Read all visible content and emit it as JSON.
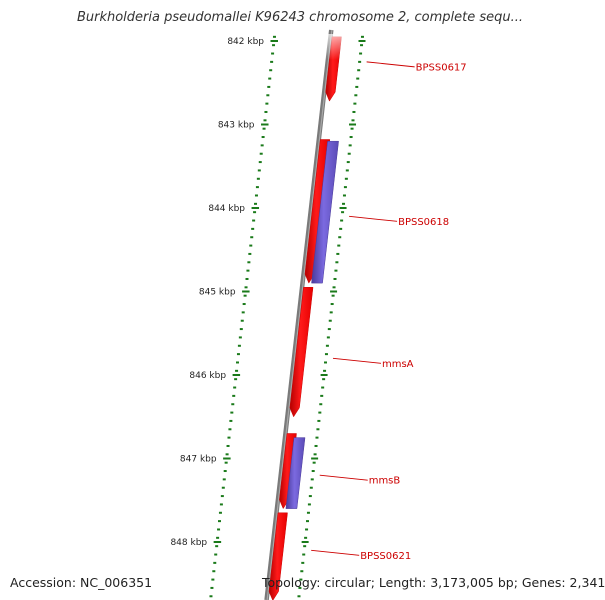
{
  "title": "Burkholderia pseudomallei K96243 chromosome 2, complete sequ...",
  "accession_text": "Accession: NC_006351",
  "summary_text": "Topology: circular; Length: 3,173,005 bp; Genes: 2,341",
  "colors": {
    "forward_gene": "#ff1a1a",
    "reverse_gene": "#6a5acd",
    "ticks": "#1a7a1a",
    "backbone": "#7a7a7a",
    "labels": "#cc0000"
  },
  "chart_data": {
    "type": "genome-map",
    "position_unit": "kbp",
    "ticks": [
      {
        "pos": 842,
        "label": "842 kbp"
      },
      {
        "pos": 843,
        "label": "843 kbp"
      },
      {
        "pos": 844,
        "label": "844 kbp"
      },
      {
        "pos": 845,
        "label": "845 kbp"
      },
      {
        "pos": 846,
        "label": "846 kbp"
      },
      {
        "pos": 847,
        "label": "847 kbp"
      },
      {
        "pos": 848,
        "label": "848 kbp"
      }
    ],
    "genes": [
      {
        "name": "BPSS0617",
        "strand": "+",
        "start": 841.95,
        "end": 842.72,
        "label_pos": 842.25
      },
      {
        "name": "BPSS0618",
        "strand": "+",
        "start": 843.18,
        "end": 844.9,
        "label_pos": 844.1
      },
      {
        "name": "",
        "strand": "-",
        "start": 843.2,
        "end": 844.9
      },
      {
        "name": "mmsA",
        "strand": "+",
        "start": 844.95,
        "end": 846.5,
        "label_pos": 845.8
      },
      {
        "name": "mmsB",
        "strand": "+",
        "start": 846.7,
        "end": 847.6,
        "label_pos": 847.2
      },
      {
        "name": "",
        "strand": "-",
        "start": 846.75,
        "end": 847.6
      },
      {
        "name": "BPSS0621",
        "strand": "+",
        "start": 847.65,
        "end": 848.7,
        "label_pos": 848.1
      }
    ]
  }
}
